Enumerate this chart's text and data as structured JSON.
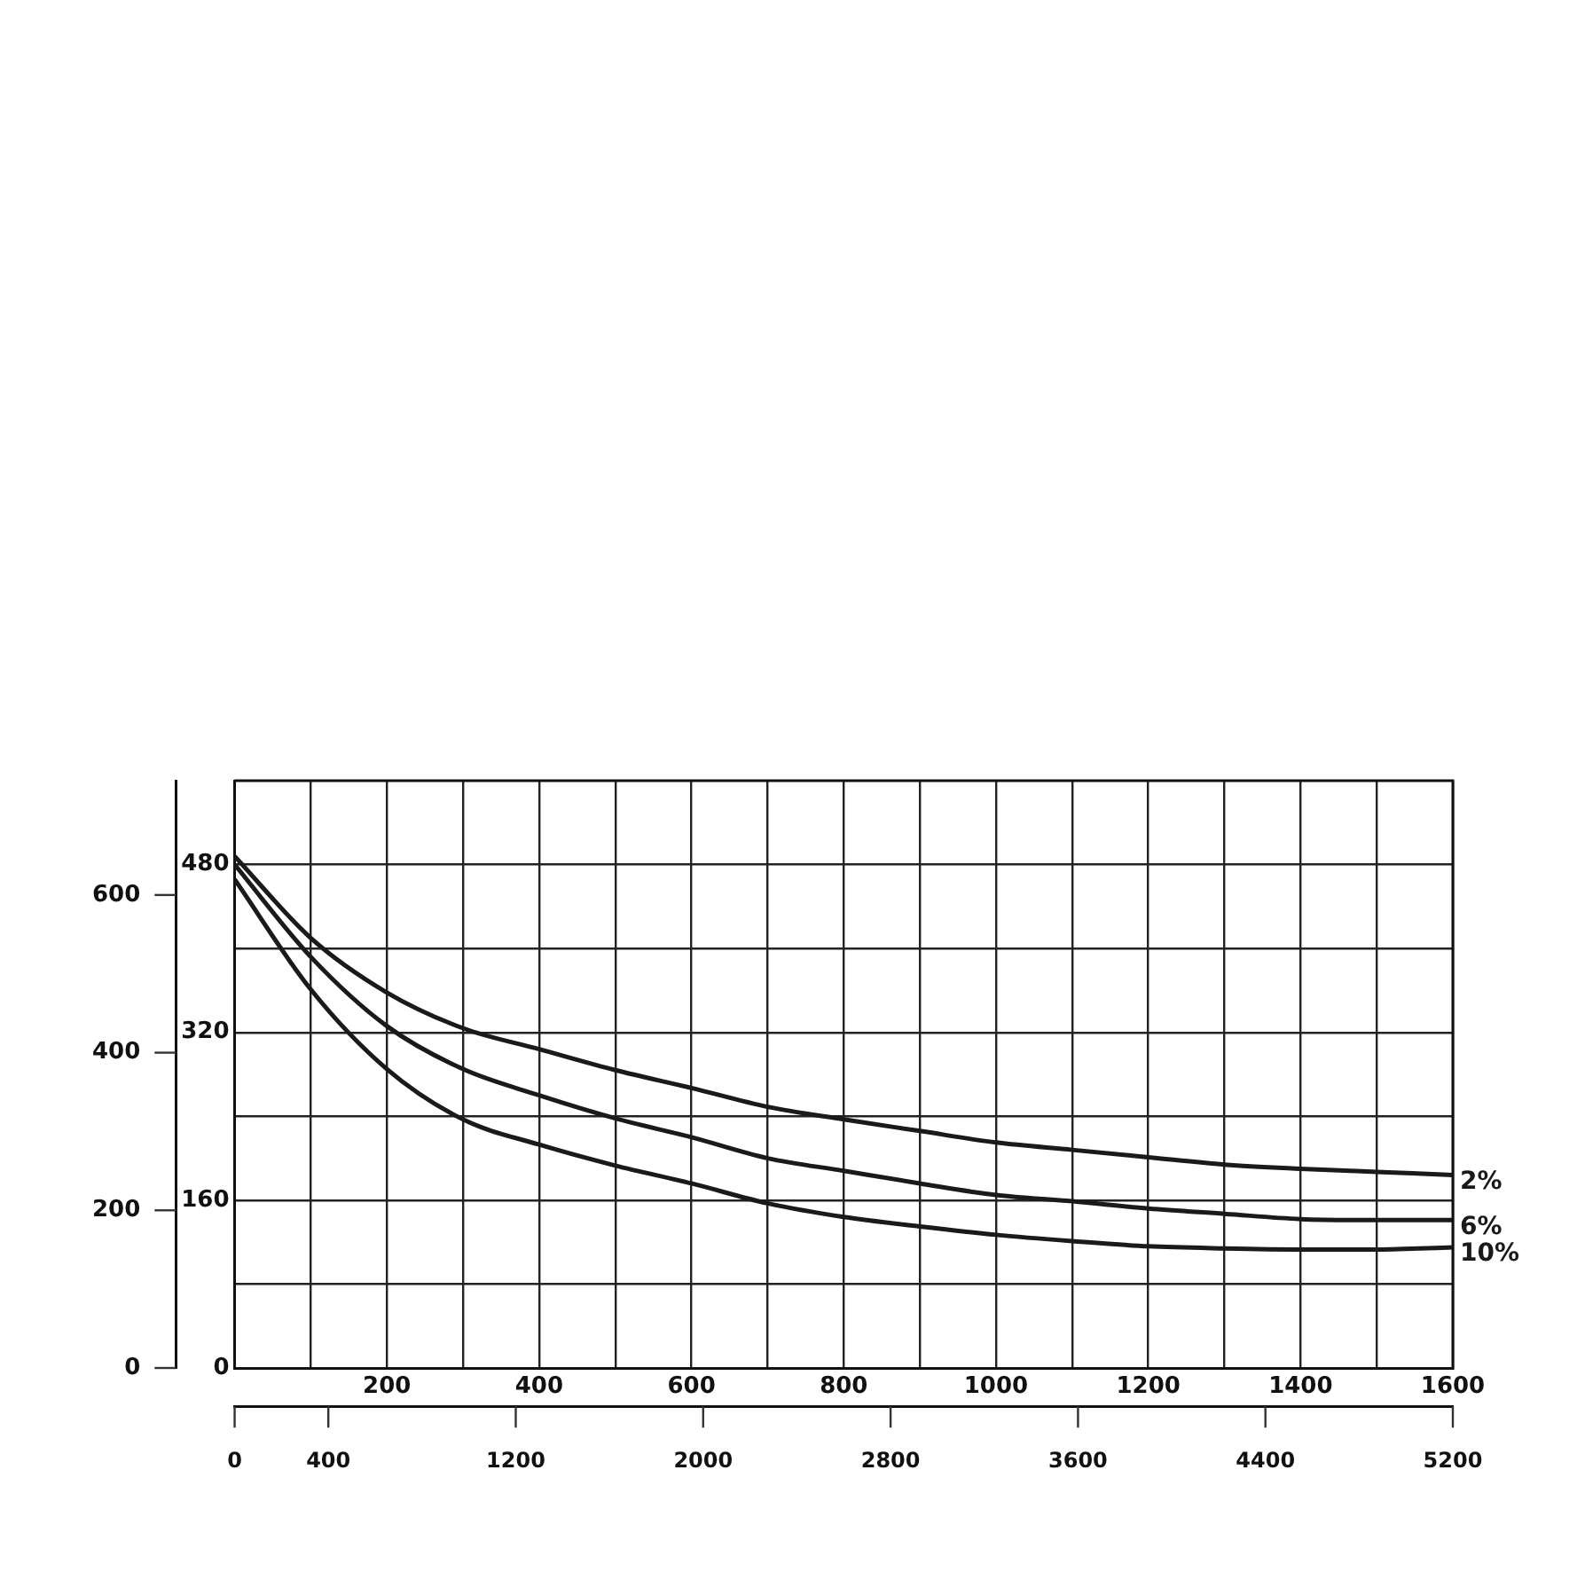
{
  "chart_data": {
    "type": "line",
    "xlim": [
      0,
      1600
    ],
    "xticks": [
      {
        "value": 100,
        "label": null
      },
      200,
      {
        "value": 300,
        "label": null
      },
      400,
      {
        "value": 500,
        "label": null
      },
      600,
      {
        "value": 700,
        "label": null
      },
      800,
      {
        "value": 900,
        "label": null
      },
      1000,
      {
        "value": 1100,
        "label": null
      },
      1200,
      {
        "value": 1300,
        "label": null
      },
      1400,
      {
        "value": 1500,
        "label": null
      },
      1600
    ],
    "ylim": [
      0,
      560
    ],
    "yticks": [
      0,
      {
        "value": 80,
        "label": null
      },
      160,
      {
        "value": 240,
        "label": null
      },
      320,
      {
        "value": 400,
        "label": null
      },
      480
    ],
    "y2lim": [
      0,
      745
    ],
    "y2ticks": [
      0,
      200,
      400,
      600
    ],
    "x2lim": [
      0,
      5200
    ],
    "x2ticks": [
      0,
      400,
      1200,
      2000,
      2800,
      3600,
      4400,
      5200
    ],
    "grid": true,
    "x": [
      0,
      100,
      200,
      300,
      400,
      500,
      600,
      700,
      800,
      900,
      1000,
      1100,
      1200,
      1300,
      1400,
      1500,
      1600
    ],
    "series": [
      {
        "name": "2%",
        "color": "#1a1a1a",
        "values": [
          488,
          410,
          358,
          324,
          304,
          284,
          267,
          249,
          237,
          226,
          215,
          208,
          201,
          194,
          190,
          187,
          184
        ]
      },
      {
        "name": "6%",
        "color": "#1a1a1a",
        "values": [
          480,
          392,
          326,
          285,
          260,
          238,
          220,
          200,
          188,
          176,
          165,
          159,
          152,
          147,
          142,
          141,
          141
        ]
      },
      {
        "name": "10%",
        "color": "#1a1a1a",
        "values": [
          466,
          361,
          285,
          237,
          213,
          193,
          176,
          157,
          144,
          135,
          127,
          121,
          116,
          114,
          113,
          113,
          115
        ]
      }
    ]
  }
}
